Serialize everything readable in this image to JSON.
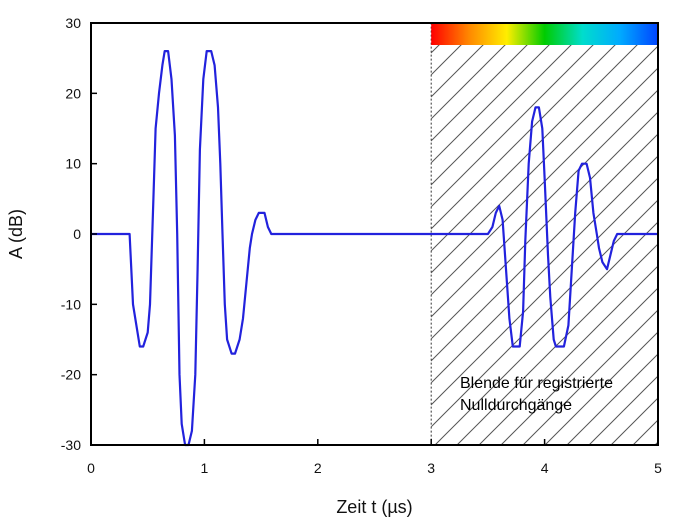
{
  "chart_data": {
    "type": "line",
    "title": "",
    "xlabel": "Zeit  t (µs)",
    "ylabel": "A (dB)",
    "xlim": [
      0,
      5
    ],
    "ylim": [
      -30,
      30
    ],
    "x_ticks": [
      "0",
      "1",
      "2",
      "3",
      "4",
      "5"
    ],
    "y_ticks": [
      "30",
      "20",
      "10",
      "0",
      "-10",
      "-20",
      "-30"
    ],
    "grid": false,
    "legend": "none",
    "series": [
      {
        "color": "#2222dd",
        "points": [
          [
            0.0,
            0
          ],
          [
            0.34,
            0
          ],
          [
            0.37,
            -10
          ],
          [
            0.4,
            -13
          ],
          [
            0.43,
            -16
          ],
          [
            0.46,
            -16
          ],
          [
            0.5,
            -14
          ],
          [
            0.52,
            -10
          ],
          [
            0.55,
            5
          ],
          [
            0.57,
            15
          ],
          [
            0.6,
            20
          ],
          [
            0.63,
            24
          ],
          [
            0.65,
            26
          ],
          [
            0.68,
            26
          ],
          [
            0.71,
            22
          ],
          [
            0.74,
            14
          ],
          [
            0.76,
            0
          ],
          [
            0.78,
            -20
          ],
          [
            0.8,
            -27
          ],
          [
            0.83,
            -30
          ],
          [
            0.86,
            -30
          ],
          [
            0.89,
            -28
          ],
          [
            0.92,
            -20
          ],
          [
            0.94,
            -5
          ],
          [
            0.96,
            12
          ],
          [
            0.99,
            22
          ],
          [
            1.02,
            26
          ],
          [
            1.06,
            26
          ],
          [
            1.09,
            24
          ],
          [
            1.12,
            18
          ],
          [
            1.14,
            10
          ],
          [
            1.16,
            0
          ],
          [
            1.18,
            -10
          ],
          [
            1.2,
            -15
          ],
          [
            1.24,
            -17
          ],
          [
            1.27,
            -17
          ],
          [
            1.31,
            -15
          ],
          [
            1.34,
            -12
          ],
          [
            1.37,
            -7
          ],
          [
            1.4,
            -2
          ],
          [
            1.42,
            0
          ],
          [
            1.45,
            2
          ],
          [
            1.48,
            3
          ],
          [
            1.53,
            3
          ],
          [
            1.56,
            1
          ],
          [
            1.59,
            0
          ],
          [
            3.5,
            0
          ],
          [
            3.54,
            1
          ],
          [
            3.57,
            3
          ],
          [
            3.6,
            4
          ],
          [
            3.63,
            2
          ],
          [
            3.66,
            -5
          ],
          [
            3.69,
            -12
          ],
          [
            3.72,
            -16
          ],
          [
            3.78,
            -16
          ],
          [
            3.81,
            -11
          ],
          [
            3.83,
            -1
          ],
          [
            3.86,
            10
          ],
          [
            3.89,
            16
          ],
          [
            3.92,
            18
          ],
          [
            3.95,
            18
          ],
          [
            3.98,
            15
          ],
          [
            4.0,
            8
          ],
          [
            4.03,
            -3
          ],
          [
            4.05,
            -9
          ],
          [
            4.08,
            -15
          ],
          [
            4.1,
            -16
          ],
          [
            4.17,
            -16
          ],
          [
            4.21,
            -13
          ],
          [
            4.24,
            -5
          ],
          [
            4.27,
            3
          ],
          [
            4.3,
            9
          ],
          [
            4.33,
            10
          ],
          [
            4.37,
            10
          ],
          [
            4.4,
            8
          ],
          [
            4.43,
            3
          ],
          [
            4.46,
            0
          ],
          [
            4.48,
            -2
          ],
          [
            4.51,
            -4
          ],
          [
            4.55,
            -5
          ],
          [
            4.58,
            -3
          ],
          [
            4.61,
            -1
          ],
          [
            4.64,
            0
          ],
          [
            5.0,
            0
          ]
        ]
      }
    ],
    "annotation": {
      "lines": [
        "Blende für registrierte",
        "Nulldurchgänge"
      ],
      "region_x": [
        3,
        5
      ],
      "fill": "diagonal-hatch",
      "colorbar": [
        "#ff0000",
        "#ff8800",
        "#ffee00",
        "#00cc00",
        "#00ddcc",
        "#00aaff",
        "#0044ff"
      ]
    }
  }
}
